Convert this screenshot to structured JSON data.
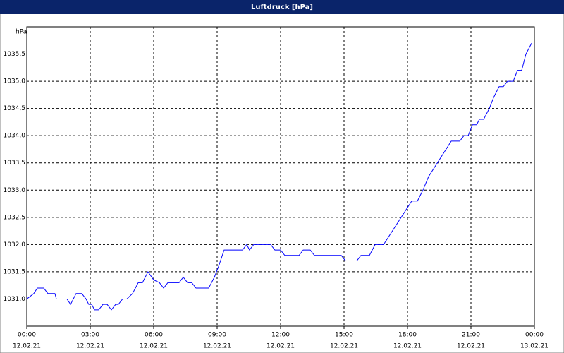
{
  "chart_data": {
    "type": "line",
    "title": "Luftdruck [hPa]",
    "y_label": "hPa",
    "x": [
      0,
      0.33,
      0.5,
      0.8,
      1.0,
      1.33,
      1.4,
      1.9,
      2.07,
      2.33,
      2.6,
      2.8,
      2.93,
      3.07,
      3.2,
      3.4,
      3.6,
      3.8,
      4.0,
      4.2,
      4.33,
      4.53,
      4.73,
      5.0,
      5.27,
      5.47,
      5.73,
      6.0,
      6.27,
      6.47,
      6.67,
      7.2,
      7.4,
      7.6,
      7.8,
      8.0,
      8.6,
      8.87,
      9.07,
      9.33,
      10.2,
      10.4,
      10.53,
      10.73,
      11.53,
      11.73,
      12.0,
      12.2,
      12.87,
      13.07,
      13.4,
      13.6,
      14.87,
      15.07,
      15.6,
      15.8,
      16.2,
      16.47,
      16.87,
      18.2,
      18.47,
      18.73,
      19.0,
      20.07,
      20.47,
      20.67,
      20.87,
      21.07,
      21.27,
      21.4,
      21.6,
      21.87,
      22.07,
      22.33,
      22.53,
      22.73,
      23.0,
      23.2,
      23.4,
      23.6,
      23.87
    ],
    "values": [
      1031.0,
      1031.1,
      1031.2,
      1031.2,
      1031.1,
      1031.1,
      1031.0,
      1031.0,
      1030.9,
      1031.1,
      1031.1,
      1031.0,
      1030.9,
      1030.9,
      1030.8,
      1030.8,
      1030.9,
      1030.9,
      1030.8,
      1030.9,
      1030.9,
      1031.0,
      1031.0,
      1031.1,
      1031.3,
      1031.3,
      1031.5,
      1031.35,
      1031.3,
      1031.2,
      1031.3,
      1031.3,
      1031.4,
      1031.3,
      1031.3,
      1031.2,
      1031.2,
      1031.4,
      1031.6,
      1031.9,
      1031.9,
      1032.0,
      1031.9,
      1032.0,
      1032.0,
      1031.9,
      1031.9,
      1031.8,
      1031.8,
      1031.9,
      1031.9,
      1031.8,
      1031.8,
      1031.7,
      1031.7,
      1031.8,
      1031.8,
      1032.0,
      1032.0,
      1032.8,
      1032.8,
      1033.0,
      1033.25,
      1033.9,
      1033.9,
      1034.0,
      1034.0,
      1034.2,
      1034.2,
      1034.3,
      1034.3,
      1034.5,
      1034.7,
      1034.9,
      1034.9,
      1035.0,
      1035.0,
      1035.2,
      1035.2,
      1035.5,
      1035.7
    ],
    "color": "#0000ff",
    "xlim": [
      0,
      24
    ],
    "xticks": [
      {
        "value": 0,
        "label": "00:00",
        "date": "12.02.21"
      },
      {
        "value": 3,
        "label": "03:00",
        "date": "12.02.21"
      },
      {
        "value": 6,
        "label": "06:00",
        "date": "12.02.21"
      },
      {
        "value": 9,
        "label": "09:00",
        "date": "12.02.21"
      },
      {
        "value": 12,
        "label": "12:00",
        "date": "12.02.21"
      },
      {
        "value": 15,
        "label": "15:00",
        "date": "12.02.21"
      },
      {
        "value": 18,
        "label": "18:00",
        "date": "12.02.21"
      },
      {
        "value": 21,
        "label": "21:00",
        "date": "12.02.21"
      },
      {
        "value": 24,
        "label": "00:00",
        "date": "13.02.21"
      }
    ],
    "ylim": [
      1030.5,
      1036.0
    ],
    "yticks": [
      {
        "value": 1031.0,
        "label": "1031,0"
      },
      {
        "value": 1031.5,
        "label": "1031,5"
      },
      {
        "value": 1032.0,
        "label": "1032,0"
      },
      {
        "value": 1032.5,
        "label": "1032,5"
      },
      {
        "value": 1033.0,
        "label": "1033,0"
      },
      {
        "value": 1033.5,
        "label": "1033,5"
      },
      {
        "value": 1034.0,
        "label": "1034,0"
      },
      {
        "value": 1034.5,
        "label": "1034,5"
      },
      {
        "value": 1035.0,
        "label": "1035,0"
      },
      {
        "value": 1035.5,
        "label": "1035,5"
      }
    ],
    "grid": true
  }
}
